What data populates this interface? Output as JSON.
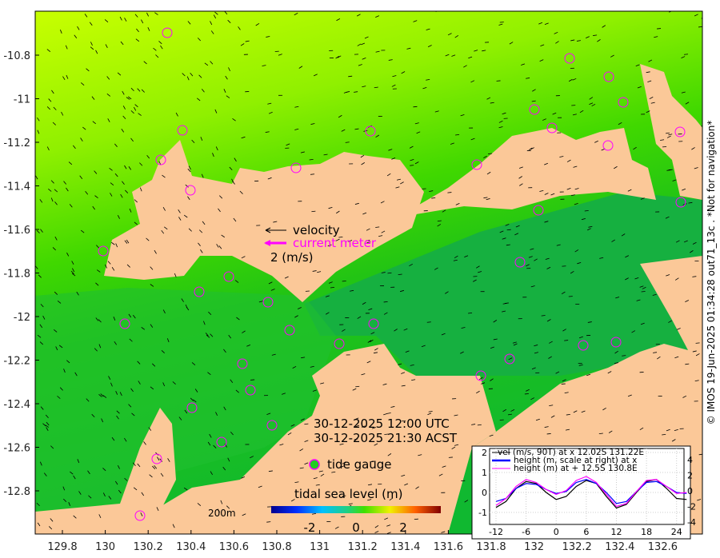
{
  "map": {
    "x_ticks": [
      "129.8",
      "130",
      "130.2",
      "130.4",
      "130.6",
      "130.8",
      "131",
      "131.2",
      "131.4",
      "131.6",
      "131.8",
      "132",
      "132.2",
      "132.4",
      "132.6"
    ],
    "y_ticks": [
      "-10.8",
      "-11",
      "-11.2",
      "-11.4",
      "-11.6",
      "-11.8",
      "-12",
      "-12.2",
      "-12.4",
      "-12.6",
      "-12.8"
    ],
    "legend": {
      "velocity": "velocity",
      "current_meter": "current meter",
      "scale": "2 (m/s)",
      "tide_gauge": "tide gauge"
    },
    "time_utc": "30-12-2025 12:00 UTC",
    "time_local": "30-12-2025 21:30 ACST",
    "scale_bar": "200m",
    "colorbar": {
      "title": "tidal sea level (m)",
      "ticks": [
        "-2",
        "0",
        "2"
      ]
    },
    "side_text": "© IMOS 19-Jun-2025 01:34:28 out71_13c . *Not for navigation*",
    "colors": {
      "land": "#fbc898",
      "gauge": "#ff00ff"
    }
  },
  "chart_data": {
    "type": "line",
    "title": "",
    "legend": [
      "vel (m/s, 90T) at x 12.02S 131.22E",
      "height (m, scale at right) at x",
      "height (m) at + 12.5S 130.8E"
    ],
    "x_ticks": [
      "-12",
      "-6",
      "0",
      "6",
      "12",
      "18",
      "24"
    ],
    "y_left_ticks": [
      "2",
      "1",
      "0",
      "-1"
    ],
    "y_right_ticks": [
      "4",
      "2",
      "0",
      "-2",
      "-4"
    ],
    "xlim": [
      -13,
      26
    ],
    "ylim": [
      -1.5,
      2.3
    ],
    "x": [
      -12,
      -10,
      -8,
      -6,
      -4,
      -2,
      0,
      2,
      4,
      6,
      8,
      10,
      12,
      14,
      16,
      18,
      20,
      22,
      24,
      26
    ],
    "series": [
      {
        "name": "vel",
        "color": "#000000",
        "values": [
          -0.75,
          -0.45,
          0.2,
          0.55,
          0.45,
          0.0,
          -0.35,
          -0.2,
          0.3,
          0.6,
          0.45,
          -0.2,
          -0.78,
          -0.6,
          0.0,
          0.55,
          0.65,
          0.2,
          -0.3,
          -0.35
        ]
      },
      {
        "name": "height x",
        "color": "#0000ff",
        "values": [
          -0.45,
          -0.3,
          0.2,
          0.45,
          0.4,
          0.15,
          -0.05,
          0.05,
          0.5,
          0.65,
          0.45,
          0.0,
          -0.55,
          -0.45,
          0.05,
          0.5,
          0.55,
          0.3,
          0.0,
          -0.05
        ]
      },
      {
        "name": "height +",
        "color": "#ff00ff",
        "values": [
          -0.65,
          -0.3,
          0.3,
          0.65,
          0.5,
          0.15,
          -0.1,
          0.1,
          0.6,
          0.8,
          0.5,
          -0.1,
          -0.7,
          -0.55,
          0.05,
          0.6,
          0.65,
          0.3,
          -0.05,
          0.0
        ]
      }
    ]
  }
}
